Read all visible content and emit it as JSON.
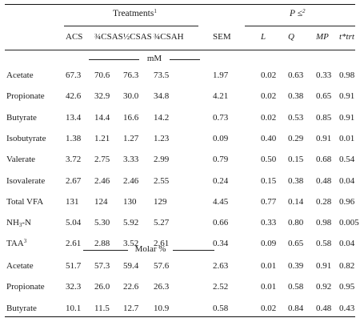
{
  "header": {
    "treatments_label": "Treatments",
    "treatments_sup": "1",
    "p_label": "P ≤",
    "p_sup": "2",
    "columns": [
      "ACS",
      "¾CSAS",
      "½CSAS",
      "¾CSAH",
      "SEM",
      "L",
      "Q",
      "MP",
      "t*trt"
    ]
  },
  "sections": [
    {
      "label": "mM",
      "rows": [
        {
          "name": "Acetate",
          "values": [
            "67.3",
            "70.6",
            "76.3",
            "73.5",
            "1.97",
            "0.02",
            "0.63",
            "0.33",
            "0.98"
          ]
        },
        {
          "name": "Propionate",
          "values": [
            "42.6",
            "32.9",
            "30.0",
            "34.8",
            "4.21",
            "0.02",
            "0.38",
            "0.65",
            "0.91"
          ]
        },
        {
          "name": "Butyrate",
          "values": [
            "13.4",
            "14.4",
            "16.6",
            "14.2",
            "0.73",
            "0.02",
            "0.53",
            "0.85",
            "0.91"
          ]
        },
        {
          "name": "Isobutyrate",
          "values": [
            "1.38",
            "1.21",
            "1.27",
            "1.23",
            "0.09",
            "0.40",
            "0.29",
            "0.91",
            "0.01"
          ]
        },
        {
          "name": "Valerate",
          "values": [
            "3.72",
            "2.75",
            "3.33",
            "2.99",
            "0.79",
            "0.50",
            "0.15",
            "0.68",
            "0.54"
          ]
        },
        {
          "name": "Isovalerate",
          "values": [
            "2.67",
            "2.46",
            "2.46",
            "2.55",
            "0.24",
            "0.15",
            "0.38",
            "0.48",
            "0.04"
          ]
        },
        {
          "name": "Total VFA",
          "values": [
            "131",
            "124",
            "130",
            "129",
            "4.45",
            "0.77",
            "0.14",
            "0.28",
            "0.96"
          ]
        },
        {
          "name": "NH",
          "name_sub": "3",
          "name_suffix": "-N",
          "values": [
            "5.04",
            "5.30",
            "5.92",
            "5.27",
            "0.66",
            "0.33",
            "0.80",
            "0.98",
            "0.005"
          ]
        },
        {
          "name": "TAA",
          "name_sup": "3",
          "values": [
            "2.61",
            "2.88",
            "3.52",
            "2.61",
            "0.34",
            "0.09",
            "0.65",
            "0.58",
            "0.04"
          ]
        }
      ]
    },
    {
      "label": "Molar %",
      "rows": [
        {
          "name": "Acetate",
          "values": [
            "51.7",
            "57.3",
            "59.4",
            "57.6",
            "2.63",
            "0.01",
            "0.39",
            "0.91",
            "0.82"
          ]
        },
        {
          "name": "Propionate",
          "values": [
            "32.3",
            "26.0",
            "22.6",
            "26.3",
            "2.52",
            "0.01",
            "0.58",
            "0.92",
            "0.95"
          ]
        },
        {
          "name": "Butyrate",
          "values": [
            "10.1",
            "11.5",
            "12.7",
            "10.9",
            "0.58",
            "0.02",
            "0.84",
            "0.48",
            "0.43"
          ]
        }
      ]
    }
  ]
}
